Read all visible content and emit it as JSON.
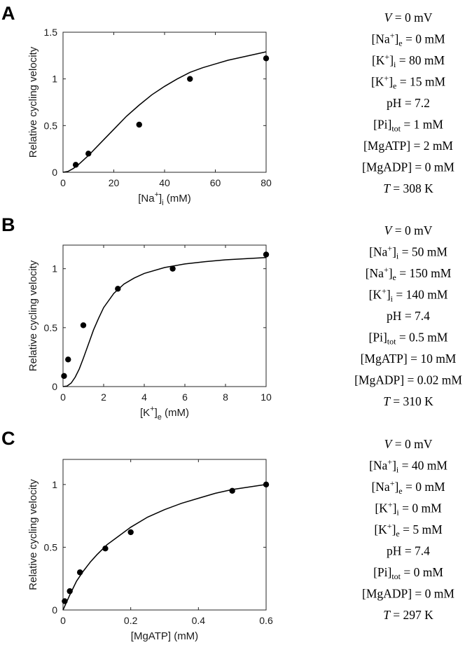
{
  "chart_data": [
    {
      "type": "scatter",
      "panel": "A",
      "xlabel": {
        "base": "[Na",
        "sup": "+",
        "mid": "]",
        "sub": "i",
        "end": " (mM)"
      },
      "ylabel": "Relative cycling velocity",
      "xlim": [
        0,
        80
      ],
      "ylim": [
        0,
        1.5
      ],
      "xticks": [
        "0",
        "20",
        "40",
        "60",
        "80"
      ],
      "yticks": [
        "0",
        "0.5",
        "1",
        "1.5"
      ],
      "xtick_values": [
        0,
        20,
        40,
        60,
        80
      ],
      "ytick_values": [
        0,
        0.5,
        1,
        1.5
      ],
      "series": [
        {
          "kind": "points",
          "x": [
            5,
            10,
            30,
            50,
            80
          ],
          "y": [
            0.08,
            0.2,
            0.51,
            1.0,
            1.22
          ]
        },
        {
          "kind": "line",
          "x": [
            0,
            2,
            4,
            6,
            8,
            10,
            15,
            20,
            25,
            30,
            35,
            40,
            45,
            50,
            55,
            60,
            65,
            70,
            75,
            80
          ],
          "y": [
            0,
            0.01,
            0.04,
            0.08,
            0.13,
            0.18,
            0.32,
            0.46,
            0.6,
            0.72,
            0.83,
            0.92,
            1.0,
            1.07,
            1.12,
            1.16,
            1.2,
            1.23,
            1.26,
            1.29
          ]
        }
      ],
      "conditions": [
        {
          "lhs": "V",
          "italic": true,
          "rhs": "= 0 mV"
        },
        {
          "lhs": "[Na",
          "sup": "+",
          "mid": "]",
          "sub": "e",
          "rhs": "= 0 mM"
        },
        {
          "lhs": "[K",
          "sup": "+",
          "mid": "]",
          "sub": "i",
          "rhs": "= 80 mM"
        },
        {
          "lhs": "[K",
          "sup": "+",
          "mid": "]",
          "sub": "e",
          "rhs": "= 15 mM"
        },
        {
          "lhs": "pH",
          "rhs": "= 7.2"
        },
        {
          "lhs": "[Pi]",
          "sub": "tot",
          "rhs": "= 1 mM"
        },
        {
          "lhs": "[MgATP]",
          "rhs": "= 2 mM"
        },
        {
          "lhs": "[MgADP]",
          "rhs": "= 0 mM"
        },
        {
          "lhs": "T",
          "italic": true,
          "rhs": "= 308 K"
        }
      ]
    },
    {
      "type": "scatter",
      "panel": "B",
      "xlabel": {
        "base": "[K",
        "sup": "+",
        "mid": "]",
        "sub": "e",
        "end": " (mM)"
      },
      "ylabel": "Relative cycling velocity",
      "xlim": [
        0,
        10
      ],
      "ylim": [
        0,
        1.2
      ],
      "xticks": [
        "0",
        "2",
        "4",
        "6",
        "8",
        "10"
      ],
      "yticks": [
        "0",
        "0.5",
        "1"
      ],
      "xtick_values": [
        0,
        2,
        4,
        6,
        8,
        10
      ],
      "ytick_values": [
        0,
        0.5,
        1
      ],
      "series": [
        {
          "kind": "points",
          "x": [
            0.05,
            0.25,
            1.0,
            2.7,
            5.4,
            10.0
          ],
          "y": [
            0.09,
            0.23,
            0.52,
            0.83,
            1.0,
            1.12
          ]
        },
        {
          "kind": "line",
          "x": [
            0,
            0.2,
            0.4,
            0.6,
            0.8,
            1.0,
            1.25,
            1.5,
            1.75,
            2.0,
            2.5,
            3.0,
            3.5,
            4.0,
            5.0,
            6.0,
            7.0,
            8.0,
            9.0,
            10.0
          ],
          "y": [
            0,
            0.005,
            0.03,
            0.08,
            0.15,
            0.24,
            0.36,
            0.48,
            0.58,
            0.67,
            0.79,
            0.87,
            0.92,
            0.96,
            1.01,
            1.04,
            1.06,
            1.075,
            1.085,
            1.095
          ]
        }
      ],
      "conditions": [
        {
          "lhs": "V",
          "italic": true,
          "rhs": "= 0 mV"
        },
        {
          "lhs": "[Na",
          "sup": "+",
          "mid": "]",
          "sub": "i",
          "rhs": "= 50 mM"
        },
        {
          "lhs": "[Na",
          "sup": "+",
          "mid": "]",
          "sub": "e",
          "rhs": "= 150 mM"
        },
        {
          "lhs": "[K",
          "sup": "+",
          "mid": "]",
          "sub": "i",
          "rhs": "= 140 mM"
        },
        {
          "lhs": "pH",
          "rhs": "= 7.4"
        },
        {
          "lhs": "[Pi]",
          "sub": "tot",
          "rhs": "= 0.5 mM"
        },
        {
          "lhs": "[MgATP]",
          "rhs": "= 10 mM"
        },
        {
          "lhs": "[MgADP]",
          "rhs": "= 0.02 mM"
        },
        {
          "lhs": "T",
          "italic": true,
          "rhs": "= 310 K"
        }
      ]
    },
    {
      "type": "scatter",
      "panel": "C",
      "xlabel": {
        "base": "[MgATP] (mM)"
      },
      "ylabel": "Relative cycling velocity",
      "xlim": [
        0,
        0.6
      ],
      "ylim": [
        0,
        1.2
      ],
      "xticks": [
        "0",
        "0.2",
        "0.4",
        "0.6"
      ],
      "yticks": [
        "0",
        "0.5",
        "1"
      ],
      "xtick_values": [
        0,
        0.2,
        0.4,
        0.6
      ],
      "ytick_values": [
        0,
        0.5,
        1
      ],
      "series": [
        {
          "kind": "points",
          "x": [
            0.005,
            0.02,
            0.05,
            0.125,
            0.2,
            0.5,
            0.6
          ],
          "y": [
            0.07,
            0.15,
            0.3,
            0.49,
            0.62,
            0.95,
            1.0
          ]
        },
        {
          "kind": "line",
          "x": [
            0,
            0.01,
            0.02,
            0.04,
            0.06,
            0.08,
            0.1,
            0.13,
            0.16,
            0.2,
            0.25,
            0.3,
            0.35,
            0.4,
            0.45,
            0.5,
            0.55,
            0.6
          ],
          "y": [
            0,
            0.06,
            0.12,
            0.23,
            0.31,
            0.38,
            0.44,
            0.52,
            0.58,
            0.66,
            0.74,
            0.8,
            0.85,
            0.89,
            0.93,
            0.96,
            0.98,
            1.0
          ]
        }
      ],
      "conditions": [
        {
          "lhs": "V",
          "italic": true,
          "rhs": "= 0 mV"
        },
        {
          "lhs": "[Na",
          "sup": "+",
          "mid": "]",
          "sub": "i",
          "rhs": "= 40 mM"
        },
        {
          "lhs": "[Na",
          "sup": "+",
          "mid": "]",
          "sub": "e",
          "rhs": "= 0 mM"
        },
        {
          "lhs": "[K",
          "sup": "+",
          "mid": "]",
          "sub": "i",
          "rhs": "= 0 mM"
        },
        {
          "lhs": "[K",
          "sup": "+",
          "mid": "]",
          "sub": "e",
          "rhs": "= 5 mM"
        },
        {
          "lhs": "pH",
          "rhs": "= 7.4"
        },
        {
          "lhs": "[Pi]",
          "sub": "tot",
          "rhs": "= 0 mM"
        },
        {
          "lhs": "[MgADP]",
          "rhs": "= 0 mM"
        },
        {
          "lhs": "T",
          "italic": true,
          "rhs": "= 297 K"
        }
      ]
    }
  ]
}
